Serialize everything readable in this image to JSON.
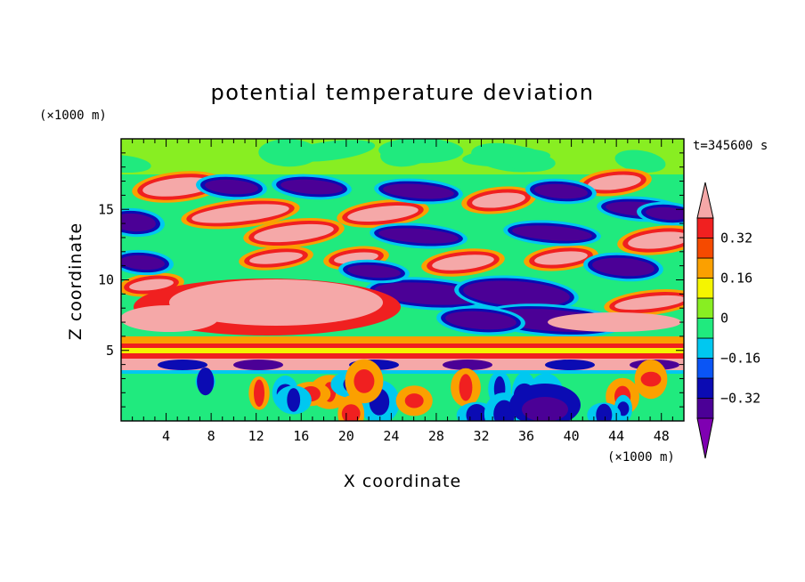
{
  "chart_data": {
    "type": "heatmap",
    "title": "potential temperature deviation",
    "xlabel": "X coordinate",
    "ylabel": "Z coordinate",
    "x_unit": "(×1000 m)",
    "y_unit": "(×1000 m)",
    "time_label": "t=345600 s",
    "xlim": [
      0,
      50
    ],
    "ylim": [
      0,
      20
    ],
    "x_ticks": [
      4,
      8,
      12,
      16,
      20,
      24,
      28,
      32,
      36,
      40,
      44,
      48
    ],
    "y_ticks": [
      5,
      10,
      15
    ],
    "colorbar": {
      "levels": [
        -0.4,
        -0.32,
        -0.24,
        -0.16,
        -0.08,
        0,
        0.08,
        0.16,
        0.24,
        0.32,
        0.4
      ],
      "labeled_ticks": [
        0.32,
        0.16,
        0,
        -0.16,
        -0.32
      ],
      "tick_labels": [
        "0.32",
        "0.16",
        "0",
        "−0.16",
        "−0.32"
      ],
      "colors": [
        "#7f00b2",
        "#4b0096",
        "#0b0bb3",
        "#0a55f5",
        "#00c8f0",
        "#20ea7e",
        "#88ee22",
        "#f5f500",
        "#fba000",
        "#f54a00",
        "#f02020",
        "#f5a8a8"
      ],
      "extend": "both"
    },
    "grid": false
  }
}
